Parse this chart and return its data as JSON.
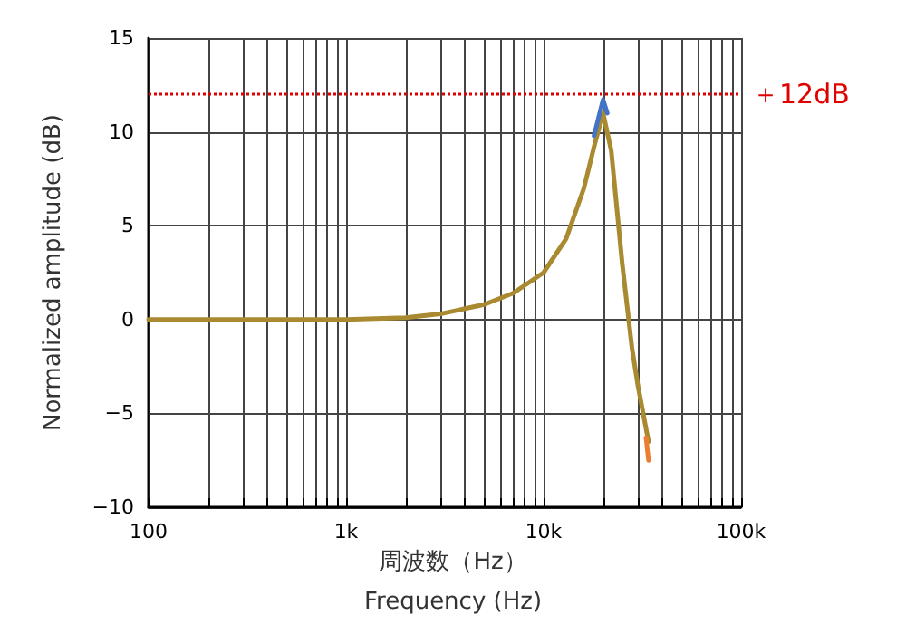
{
  "chart_data": {
    "type": "line",
    "xlabel": "周波数（Hz）\nFrequency (Hz)",
    "ylabel": "Normalized amplitude (dB)",
    "log": "x",
    "xlim": [
      100,
      100000
    ],
    "ylim": [
      -10,
      15
    ],
    "xticks": [
      100,
      {
        "value": 200,
        "label": null
      },
      {
        "value": 300,
        "label": null
      },
      {
        "value": 400,
        "label": null
      },
      {
        "value": 500,
        "label": null
      },
      {
        "value": 600,
        "label": null
      },
      {
        "value": 700,
        "label": null
      },
      {
        "value": 800,
        "label": null
      },
      {
        "value": 900,
        "label": null
      },
      {
        "value": 1000,
        "label": "1k"
      },
      {
        "value": 2000,
        "label": null
      },
      {
        "value": 3000,
        "label": null
      },
      {
        "value": 4000,
        "label": null
      },
      {
        "value": 5000,
        "label": null
      },
      {
        "value": 6000,
        "label": null
      },
      {
        "value": 7000,
        "label": null
      },
      {
        "value": 8000,
        "label": null
      },
      {
        "value": 9000,
        "label": null
      },
      {
        "value": 10000,
        "label": "10k"
      },
      {
        "value": 20000,
        "label": null
      },
      {
        "value": 30000,
        "label": null
      },
      {
        "value": 40000,
        "label": null
      },
      {
        "value": 50000,
        "label": null
      },
      {
        "value": 60000,
        "label": null
      },
      {
        "value": 70000,
        "label": null
      },
      {
        "value": 80000,
        "label": null
      },
      {
        "value": 90000,
        "label": null
      },
      {
        "value": 100000,
        "label": "100k"
      }
    ],
    "yticks": [
      {
        "value": -10,
        "label": "−10"
      },
      {
        "value": -5,
        "label": "−5"
      },
      0,
      5,
      10,
      15
    ],
    "grid": true,
    "marker": "none",
    "line_style": "solid",
    "ref_lines": [
      {
        "axis": "y",
        "value": 12,
        "label": "＋12dB",
        "color": "#e00000",
        "line_style": "dotted"
      }
    ],
    "series": [
      {
        "color": "#a98a30",
        "x": [
          100,
          1000,
          2000,
          3000,
          5000,
          7000,
          10000,
          13000,
          16000,
          18000,
          20000,
          22000,
          25000,
          28000,
          30000,
          33000,
          34000
        ],
        "values": [
          0,
          0,
          0.1,
          0.3,
          0.8,
          1.4,
          2.5,
          4.3,
          7,
          9.2,
          11,
          9,
          3,
          -1.5,
          -3.5,
          -5.8,
          -6.5
        ]
      },
      {
        "color": "#4472c4",
        "x": [
          18000,
          20000,
          21000
        ],
        "values": [
          9.8,
          11.7,
          11
        ]
      },
      {
        "color": "#ed7d31",
        "x": [
          33000,
          34000
        ],
        "values": [
          -6.3,
          -7.5
        ]
      }
    ]
  }
}
